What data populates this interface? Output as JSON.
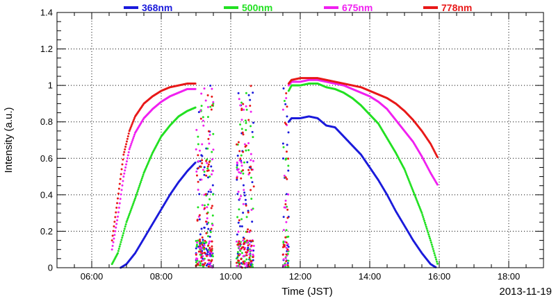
{
  "chart_data": {
    "type": "scatter",
    "xlabel": "Time (JST)",
    "ylabel": "Intensity (a.u.)",
    "date_label": "2013-11-19",
    "xlim": [
      "05:00",
      "19:00"
    ],
    "ylim": [
      0,
      1.4
    ],
    "x_ticks": [
      "06:00",
      "08:00",
      "10:00",
      "12:00",
      "14:00",
      "16:00",
      "18:00"
    ],
    "y_ticks": [
      "0",
      "0.2",
      "0.4",
      "0.6",
      "0.8",
      "1",
      "1.2",
      "1.4"
    ],
    "grid": true,
    "legend_position": "top",
    "series": [
      {
        "name": "368nm",
        "color": "#1a1adb",
        "clear_sky": [
          [
            "06:50",
            0.0
          ],
          [
            "07:00",
            0.02
          ],
          [
            "07:15",
            0.08
          ],
          [
            "07:30",
            0.16
          ],
          [
            "07:45",
            0.24
          ],
          [
            "08:00",
            0.32
          ],
          [
            "08:15",
            0.4
          ],
          [
            "08:30",
            0.47
          ],
          [
            "08:45",
            0.53
          ],
          [
            "09:00",
            0.58
          ],
          [
            "11:40",
            0.8
          ],
          [
            "11:45",
            0.82
          ],
          [
            "12:00",
            0.82
          ],
          [
            "12:15",
            0.83
          ],
          [
            "12:30",
            0.82
          ],
          [
            "12:45",
            0.78
          ],
          [
            "13:00",
            0.77
          ],
          [
            "13:15",
            0.72
          ],
          [
            "13:30",
            0.67
          ],
          [
            "13:45",
            0.62
          ],
          [
            "14:00",
            0.55
          ],
          [
            "14:15",
            0.48
          ],
          [
            "14:30",
            0.4
          ],
          [
            "14:45",
            0.31
          ],
          [
            "15:00",
            0.23
          ],
          [
            "15:15",
            0.15
          ],
          [
            "15:30",
            0.08
          ],
          [
            "15:45",
            0.02
          ],
          [
            "15:55",
            0.0
          ]
        ]
      },
      {
        "name": "500nm",
        "color": "#22e022",
        "clear_sky": [
          [
            "06:35",
            0.02
          ],
          [
            "06:45",
            0.08
          ],
          [
            "07:00",
            0.25
          ],
          [
            "07:15",
            0.38
          ],
          [
            "07:30",
            0.52
          ],
          [
            "07:45",
            0.63
          ],
          [
            "08:00",
            0.72
          ],
          [
            "08:15",
            0.78
          ],
          [
            "08:30",
            0.83
          ],
          [
            "08:45",
            0.86
          ],
          [
            "09:00",
            0.88
          ],
          [
            "11:40",
            0.97
          ],
          [
            "11:45",
            1.0
          ],
          [
            "12:00",
            1.0
          ],
          [
            "12:15",
            1.01
          ],
          [
            "12:30",
            1.01
          ],
          [
            "12:45",
            0.99
          ],
          [
            "13:00",
            0.98
          ],
          [
            "13:15",
            0.96
          ],
          [
            "13:30",
            0.93
          ],
          [
            "13:45",
            0.89
          ],
          [
            "14:00",
            0.84
          ],
          [
            "14:15",
            0.79
          ],
          [
            "14:30",
            0.71
          ],
          [
            "14:45",
            0.63
          ],
          [
            "15:00",
            0.54
          ],
          [
            "15:15",
            0.42
          ],
          [
            "15:30",
            0.3
          ],
          [
            "15:45",
            0.15
          ],
          [
            "15:58",
            0.01
          ]
        ]
      },
      {
        "name": "675nm",
        "color": "#f020f0",
        "clear_sky": [
          [
            "06:35",
            0.1
          ],
          [
            "06:45",
            0.28
          ],
          [
            "06:55",
            0.5
          ],
          [
            "07:05",
            0.65
          ],
          [
            "07:15",
            0.74
          ],
          [
            "07:30",
            0.82
          ],
          [
            "07:45",
            0.87
          ],
          [
            "08:00",
            0.91
          ],
          [
            "08:15",
            0.94
          ],
          [
            "08:30",
            0.96
          ],
          [
            "08:45",
            0.98
          ],
          [
            "09:00",
            0.98
          ],
          [
            "11:40",
            1.0
          ],
          [
            "11:45",
            1.02
          ],
          [
            "12:00",
            1.02
          ],
          [
            "12:15",
            1.03
          ],
          [
            "12:30",
            1.03
          ],
          [
            "12:45",
            1.02
          ],
          [
            "13:00",
            1.01
          ],
          [
            "13:15",
            1.0
          ],
          [
            "13:30",
            0.98
          ],
          [
            "13:45",
            0.96
          ],
          [
            "14:00",
            0.94
          ],
          [
            "14:15",
            0.91
          ],
          [
            "14:30",
            0.87
          ],
          [
            "14:45",
            0.81
          ],
          [
            "15:00",
            0.75
          ],
          [
            "15:15",
            0.69
          ],
          [
            "15:30",
            0.61
          ],
          [
            "15:45",
            0.52
          ],
          [
            "15:58",
            0.45
          ]
        ]
      },
      {
        "name": "778nm",
        "color": "#e81818",
        "clear_sky": [
          [
            "06:35",
            0.15
          ],
          [
            "06:45",
            0.38
          ],
          [
            "06:55",
            0.62
          ],
          [
            "07:05",
            0.75
          ],
          [
            "07:15",
            0.83
          ],
          [
            "07:30",
            0.9
          ],
          [
            "07:45",
            0.94
          ],
          [
            "08:00",
            0.97
          ],
          [
            "08:15",
            0.99
          ],
          [
            "08:30",
            1.0
          ],
          [
            "08:45",
            1.01
          ],
          [
            "09:00",
            1.01
          ],
          [
            "11:40",
            1.01
          ],
          [
            "11:45",
            1.03
          ],
          [
            "12:00",
            1.04
          ],
          [
            "12:15",
            1.04
          ],
          [
            "12:30",
            1.04
          ],
          [
            "12:45",
            1.03
          ],
          [
            "13:00",
            1.02
          ],
          [
            "13:15",
            1.01
          ],
          [
            "13:30",
            1.0
          ],
          [
            "13:45",
            0.99
          ],
          [
            "14:00",
            0.97
          ],
          [
            "14:15",
            0.95
          ],
          [
            "14:30",
            0.93
          ],
          [
            "14:45",
            0.9
          ],
          [
            "15:00",
            0.86
          ],
          [
            "15:15",
            0.81
          ],
          [
            "15:30",
            0.75
          ],
          [
            "15:45",
            0.68
          ],
          [
            "15:58",
            0.6
          ]
        ]
      }
    ],
    "cloudy_segments": [
      [
        "09:00",
        "09:30"
      ],
      [
        "10:10",
        "10:40"
      ],
      [
        "11:30",
        "11:40"
      ]
    ]
  }
}
